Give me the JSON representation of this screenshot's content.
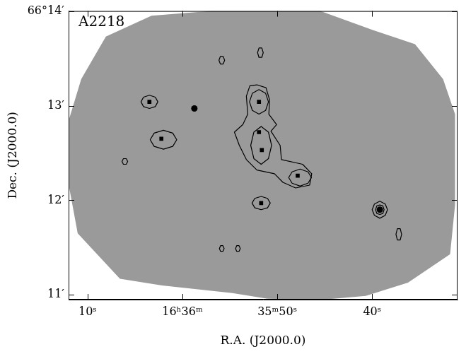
{
  "chart_data": {
    "type": "contour_map",
    "title": "A2218",
    "x_label": "R.A. (J2000.0)",
    "y_label": "Dec. (J2000.0)",
    "xlim": [
      72,
      31
    ],
    "xticks": [
      {
        "value": 70,
        "label": "10ˢ"
      },
      {
        "value": 60,
        "label": "16ʰ36ᵐ"
      },
      {
        "value": 50,
        "label": "35ᵐ50ˢ"
      },
      {
        "value": 40,
        "label": "40ˢ"
      }
    ],
    "ylim": [
      10.95,
      14
    ],
    "yticks": [
      {
        "value": 11,
        "label": "11′"
      },
      {
        "value": 12,
        "label": "12′"
      },
      {
        "value": 13,
        "label": "13′"
      },
      {
        "value": 14,
        "label": "66°14′"
      }
    ],
    "grid": false,
    "field_outline": {
      "color": "#9a9a9a",
      "x": [
        70.67,
        68.07,
        63.26,
        56.96,
        45.48,
        39.93,
        35.48,
        32.52,
        31.26,
        31.26,
        31.78,
        36.22,
        40.67,
        45.11,
        51.04,
        54.74,
        62.15,
        66.59,
        71.04,
        72,
        72
      ],
      "y": [
        13.28,
        13.73,
        13.95,
        14.0,
        14.0,
        13.8,
        13.65,
        13.28,
        12.91,
        11.95,
        11.43,
        11.13,
        10.99,
        10.95,
        10.96,
        11.02,
        11.1,
        11.17,
        11.65,
        12.17,
        12.84
      ]
    },
    "contours": [
      {
        "x": [
          52.15,
          51.19,
          50.81,
          50.89,
          50.07,
          50.67,
          49.7,
          49.56,
          47.33,
          46.37,
          46.59,
          48.07,
          49.41,
          50.3,
          52.15,
          53.26,
          54.0,
          54.52,
          53.63,
          53.11,
          53.26,
          52.89
        ],
        "y": [
          13.22,
          13.19,
          13.06,
          12.91,
          12.8,
          12.73,
          12.58,
          12.43,
          12.38,
          12.28,
          12.16,
          12.13,
          12.19,
          12.28,
          12.32,
          12.43,
          12.58,
          12.72,
          12.8,
          12.91,
          13.1,
          13.21
        ]
      },
      {
        "x": [
          52.93,
          52.63,
          51.93,
          51.23,
          50.93,
          51.23,
          51.93,
          52.63
        ],
        "y": [
          13.04,
          13.13,
          13.17,
          13.13,
          13.04,
          12.95,
          12.91,
          12.95
        ]
      },
      {
        "x": [
          52.8,
          52.47,
          51.7,
          50.93,
          50.6,
          50.93,
          51.7,
          52.47
        ],
        "y": [
          12.58,
          12.72,
          12.78,
          12.72,
          12.58,
          12.44,
          12.38,
          12.44
        ]
      },
      {
        "x": [
          48.8,
          48.44,
          47.6,
          46.76,
          46.4,
          46.76,
          47.6,
          48.44
        ],
        "y": [
          12.24,
          12.3,
          12.33,
          12.3,
          12.24,
          12.18,
          12.15,
          12.18
        ]
      },
      {
        "x": [
          64.37,
          64.1,
          63.48,
          62.86,
          62.59,
          62.86,
          63.48,
          64.1
        ],
        "y": [
          13.04,
          13.09,
          13.11,
          13.09,
          13.04,
          12.99,
          12.97,
          12.99
        ]
      },
      {
        "x": [
          63.4,
          62.98,
          62.0,
          61.02,
          60.6,
          61.02,
          62.0,
          62.98
        ],
        "y": [
          12.64,
          12.71,
          12.74,
          12.71,
          12.64,
          12.57,
          12.54,
          12.57
        ]
      },
      {
        "x": [
          52.66,
          52.37,
          51.7,
          51.03,
          50.74,
          51.03,
          51.7,
          52.37
        ],
        "y": [
          11.97,
          12.02,
          12.04,
          12.02,
          11.97,
          11.92,
          11.9,
          11.92
        ]
      },
      {
        "x": [
          40.0,
          39.76,
          39.19,
          38.62,
          38.38,
          38.62,
          39.19,
          39.76
        ],
        "y": [
          11.9,
          11.96,
          11.99,
          11.96,
          11.9,
          11.84,
          11.81,
          11.84
        ]
      },
      {
        "x": [
          39.64,
          39.51,
          39.19,
          38.87,
          38.74,
          38.87,
          39.19,
          39.51
        ],
        "y": [
          11.9,
          11.94,
          11.95,
          11.94,
          11.9,
          11.86,
          11.85,
          11.86
        ]
      },
      {
        "x": [
          66.37,
          66.22,
          65.92,
          65.77,
          65.92,
          66.22
        ],
        "y": [
          12.41,
          12.44,
          12.44,
          12.41,
          12.38,
          12.38
        ]
      },
      {
        "x": [
          56.15,
          56.0,
          55.7,
          55.55,
          55.7,
          56.0
        ],
        "y": [
          13.48,
          13.52,
          13.52,
          13.48,
          13.44,
          13.44
        ]
      },
      {
        "x": [
          52.08,
          51.93,
          51.63,
          51.48,
          51.63,
          51.93
        ],
        "y": [
          13.56,
          13.61,
          13.61,
          13.56,
          13.51,
          13.51
        ]
      },
      {
        "x": [
          56.1,
          55.98,
          55.73,
          55.6,
          55.73,
          55.98
        ],
        "y": [
          11.49,
          11.52,
          11.52,
          11.49,
          11.46,
          11.46
        ]
      },
      {
        "x": [
          54.4,
          54.28,
          54.03,
          53.9,
          54.03,
          54.28
        ],
        "y": [
          11.49,
          11.52,
          11.52,
          11.49,
          11.46,
          11.46
        ]
      },
      {
        "x": [
          37.49,
          37.34,
          37.04,
          36.89,
          37.04,
          37.34
        ],
        "y": [
          11.64,
          11.7,
          11.7,
          11.64,
          11.58,
          11.58
        ]
      }
    ],
    "series": [
      {
        "marker": "square",
        "color": "#000000",
        "x": [
          63.48,
          62.22,
          51.93,
          51.93,
          51.63,
          47.85,
          51.7
        ],
        "y": [
          13.04,
          12.65,
          13.04,
          12.72,
          12.53,
          12.26,
          11.97
        ]
      },
      {
        "marker": "circle",
        "color": "#000000",
        "x": [
          58.74,
          39.19
        ],
        "y": [
          12.97,
          11.9
        ]
      }
    ]
  }
}
